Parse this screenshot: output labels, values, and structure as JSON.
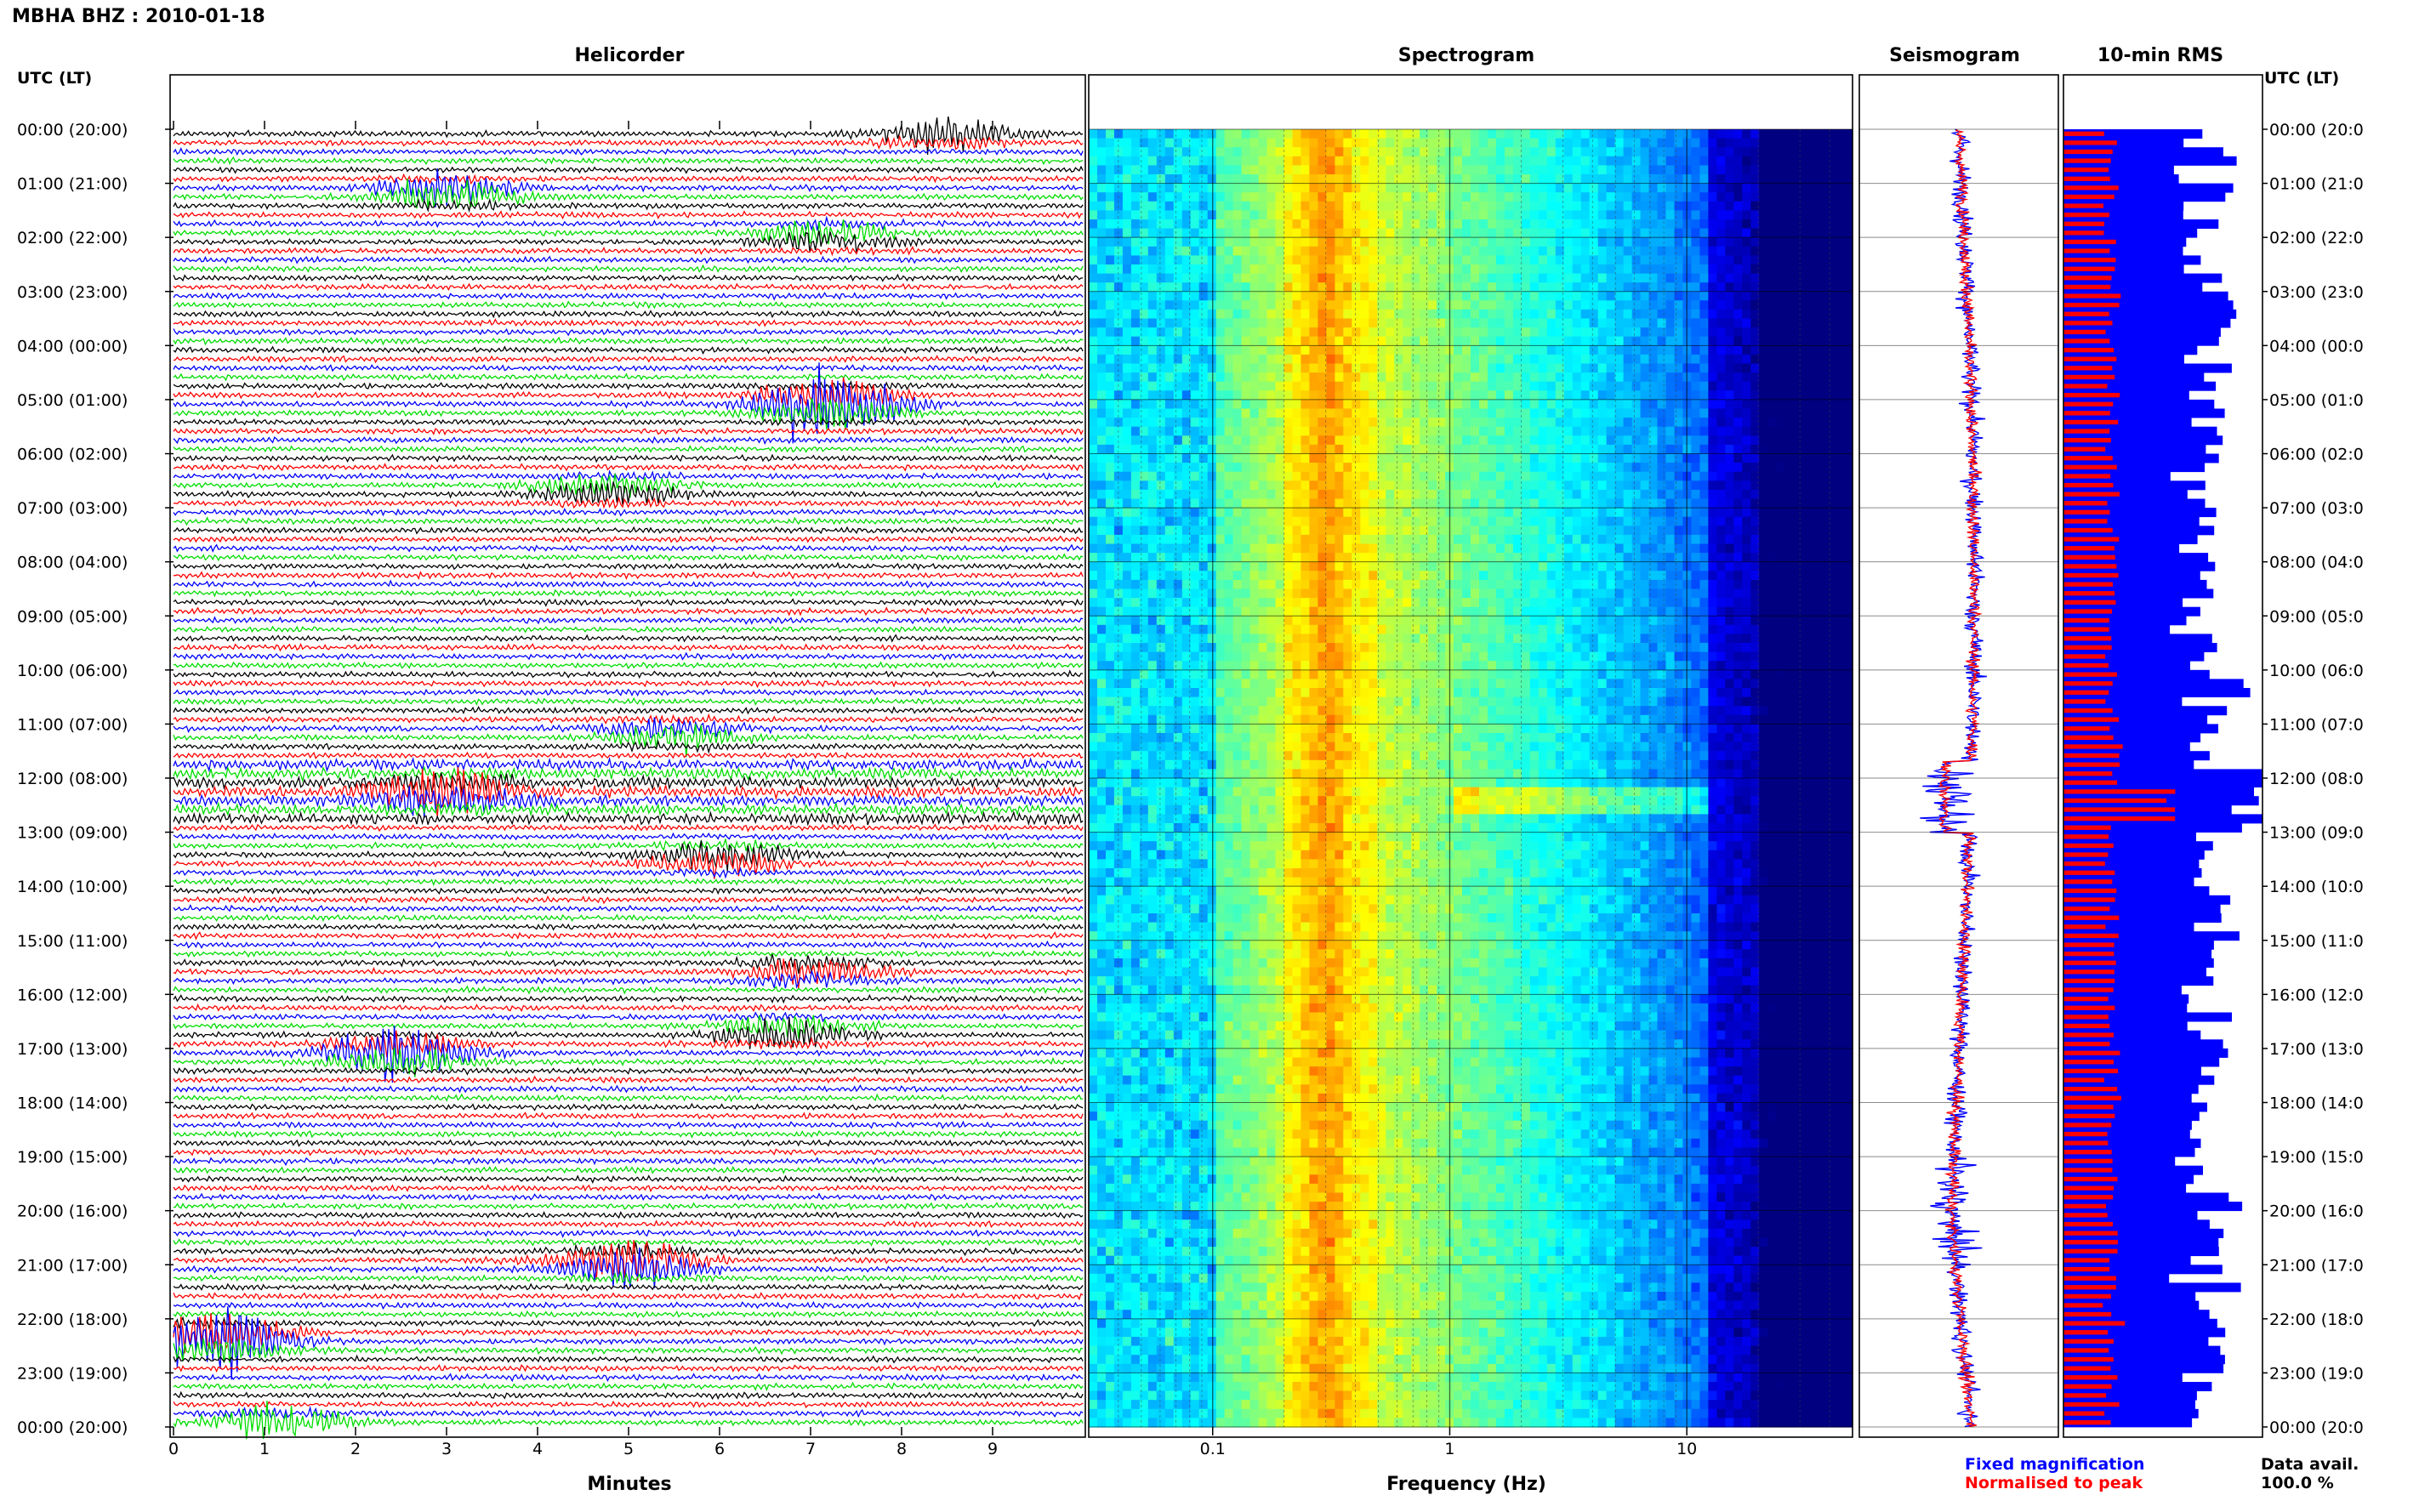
{
  "header": {
    "station_title": "MBHA BHZ : 2010-01-18"
  },
  "panels": {
    "helicorder": "Helicorder",
    "spectrogram": "Spectrogram",
    "seismogram": "Seismogram",
    "rms": "10-min RMS"
  },
  "axis_left_label": "UTC (LT)",
  "axis_right_label": "UTC (LT)",
  "time_labels": [
    "00:00 (20:00)",
    "01:00 (21:00)",
    "02:00 (22:00)",
    "03:00 (23:00)",
    "04:00 (00:00)",
    "05:00 (01:00)",
    "06:00 (02:00)",
    "07:00 (03:00)",
    "08:00 (04:00)",
    "09:00 (05:00)",
    "10:00 (06:00)",
    "11:00 (07:00)",
    "12:00 (08:00)",
    "13:00 (09:00)",
    "14:00 (10:00)",
    "15:00 (11:00)",
    "16:00 (12:00)",
    "17:00 (13:00)",
    "18:00 (14:00)",
    "19:00 (15:00)",
    "20:00 (16:00)",
    "21:00 (17:00)",
    "22:00 (18:00)",
    "23:00 (19:00)",
    "00:00 (20:00)"
  ],
  "right_time_labels": [
    "00:00 (20:0",
    "01:00 (21:0",
    "02:00 (22:0",
    "03:00 (23:0",
    "04:00 (00:0",
    "05:00 (01:0",
    "06:00 (02:0",
    "07:00 (03:0",
    "08:00 (04:0",
    "09:00 (05:0",
    "10:00 (06:0",
    "11:00 (07:0",
    "12:00 (08:0",
    "13:00 (09:0",
    "14:00 (10:0",
    "15:00 (11:0",
    "16:00 (12:0",
    "17:00 (13:0",
    "18:00 (14:0",
    "19:00 (15:0",
    "20:00 (16:0",
    "21:00 (17:0",
    "22:00 (18:0",
    "23:00 (19:0",
    "00:00 (20:0"
  ],
  "footer": {
    "minutes_label": "Minutes",
    "frequency_label": "Frequency (Hz)",
    "legend_fixed": "Fixed magnification",
    "legend_normalised": "Normalised to peak",
    "data_avail_label": "Data avail.",
    "data_avail_value": "100.0 %"
  },
  "colors": {
    "trace_cycle": [
      "#000000",
      "#ff0000",
      "#0000ff",
      "#00dd00"
    ],
    "fixed": "#0000ff",
    "normalised": "#ff0000"
  },
  "chart_data": [
    {
      "type": "line",
      "name_panel": "Helicorder",
      "xlabel": "Minutes",
      "xlim": [
        0,
        10
      ],
      "x_ticks": [
        "0",
        "1",
        "2",
        "3",
        "4",
        "5",
        "6",
        "7",
        "8",
        "9"
      ],
      "rows_per_hour": 6,
      "hours": 24,
      "events": [
        {
          "hour": 0.0,
          "minute": 8.5,
          "amp": 2.0
        },
        {
          "hour": 1.1,
          "minute": 3.0,
          "amp": 2.5
        },
        {
          "hour": 1.9,
          "minute": 7.2,
          "amp": 1.8
        },
        {
          "hour": 5.0,
          "minute": 7.2,
          "amp": 5.0
        },
        {
          "hour": 6.6,
          "minute": 4.8,
          "amp": 2.0
        },
        {
          "hour": 11.1,
          "minute": 5.5,
          "amp": 2.0
        },
        {
          "hour": 12.2,
          "minute": 3.0,
          "amp": 3.0
        },
        {
          "hour": 13.4,
          "minute": 6.0,
          "amp": 2.2
        },
        {
          "hour": 15.5,
          "minute": 7.0,
          "amp": 2.0
        },
        {
          "hour": 16.6,
          "minute": 6.7,
          "amp": 2.2
        },
        {
          "hour": 17.0,
          "minute": 2.5,
          "amp": 4.0
        },
        {
          "hour": 20.9,
          "minute": 5.0,
          "amp": 3.5
        },
        {
          "hour": 22.3,
          "minute": 0.5,
          "amp": 5.0
        },
        {
          "hour": 23.9,
          "minute": 1.2,
          "amp": 2.5
        }
      ]
    },
    {
      "type": "heatmap",
      "name_panel": "Spectrogram",
      "xlabel": "Frequency (Hz)",
      "x_scale": "log",
      "xlim": [
        0.03,
        50
      ],
      "x_ticks": [
        "0.1",
        "1",
        "10"
      ],
      "peak_band_hz": [
        0.25,
        0.4
      ]
    },
    {
      "type": "line",
      "name_panel": "Seismogram",
      "series": [
        {
          "name": "Fixed magnification",
          "color": "#0000ff"
        },
        {
          "name": "Normalised to peak",
          "color": "#ff0000"
        }
      ]
    },
    {
      "type": "bar",
      "name_panel": "10-min RMS",
      "orientation": "horizontal",
      "series": [
        {
          "name": "Fixed magnification",
          "color": "#0000ff"
        },
        {
          "name": "Normalised to peak",
          "color": "#ff0000"
        }
      ]
    }
  ]
}
